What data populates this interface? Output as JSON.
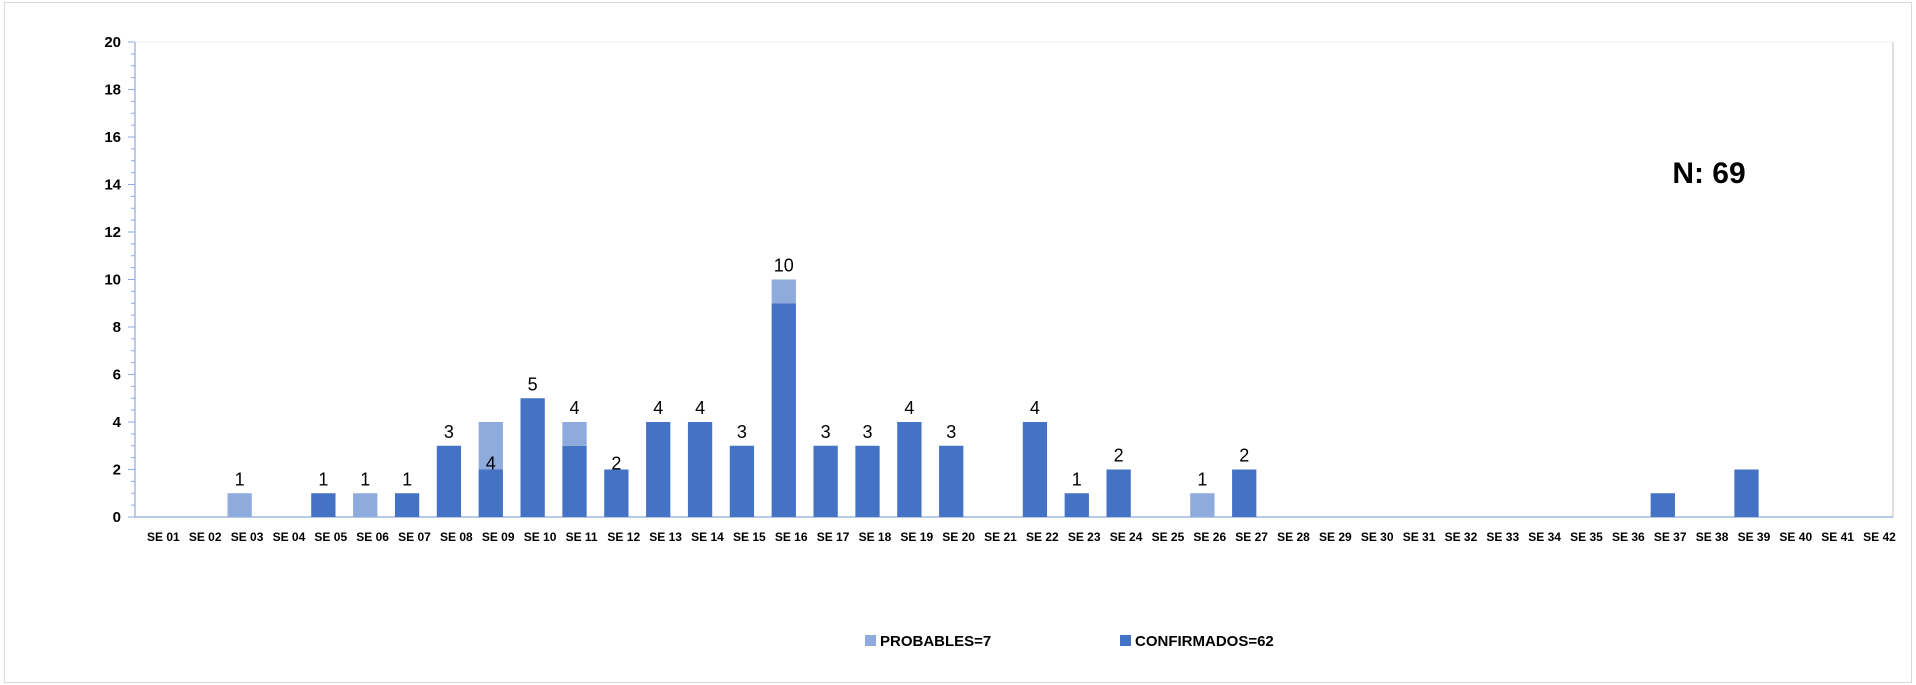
{
  "chart_data": {
    "type": "bar",
    "stacked": true,
    "categories": [
      "SE 01",
      "SE 02",
      "SE 03",
      "SE 04",
      "SE 05",
      "SE 06",
      "SE 07",
      "SE 08",
      "SE 09",
      "SE 10",
      "SE 11",
      "SE 12",
      "SE 13",
      "SE 14",
      "SE 15",
      "SE 16",
      "SE 17",
      "SE 18",
      "SE 19",
      "SE 20",
      "SE 21",
      "SE 22",
      "SE 23",
      "SE 24",
      "SE 25",
      "SE 26",
      "SE 27",
      "SE 28",
      "SE 29",
      "SE 30",
      "SE 31",
      "SE 32",
      "SE 33",
      "SE 34",
      "SE 35",
      "SE 36",
      "SE 37",
      "SE 38",
      "SE 39",
      "SE 40",
      "SE 41",
      "SE 42"
    ],
    "series": [
      {
        "name": "CONFIRMADOS=62",
        "color": "#4472c4",
        "values": [
          0,
          0,
          0,
          0,
          1,
          0,
          1,
          3,
          2,
          5,
          3,
          2,
          4,
          4,
          3,
          9,
          3,
          3,
          4,
          3,
          0,
          4,
          1,
          2,
          0,
          0,
          2,
          0,
          0,
          0,
          0,
          0,
          0,
          0,
          0,
          0,
          1,
          0,
          2,
          0,
          0,
          0
        ]
      },
      {
        "name": "PROBABLES=7",
        "color": "#8faadc",
        "values": [
          0,
          0,
          1,
          0,
          0,
          1,
          0,
          0,
          2,
          0,
          1,
          0,
          0,
          0,
          0,
          1,
          0,
          0,
          0,
          0,
          0,
          0,
          0,
          0,
          0,
          1,
          0,
          0,
          0,
          0,
          0,
          0,
          0,
          0,
          0,
          0,
          0,
          0,
          0,
          0,
          0,
          0
        ]
      }
    ],
    "data_labels": [
      {
        "index": 2,
        "text": "1"
      },
      {
        "index": 4,
        "text": "1"
      },
      {
        "index": 5,
        "text": "1"
      },
      {
        "index": 6,
        "text": "1"
      },
      {
        "index": 7,
        "text": "3"
      },
      {
        "index": 8,
        "text": "4",
        "placement": "inside"
      },
      {
        "index": 9,
        "text": "5"
      },
      {
        "index": 10,
        "text": "4"
      },
      {
        "index": 11,
        "text": "2",
        "placement": "inside"
      },
      {
        "index": 12,
        "text": "4"
      },
      {
        "index": 13,
        "text": "4"
      },
      {
        "index": 14,
        "text": "3"
      },
      {
        "index": 15,
        "text": "10"
      },
      {
        "index": 16,
        "text": "3"
      },
      {
        "index": 17,
        "text": "3"
      },
      {
        "index": 18,
        "text": "4"
      },
      {
        "index": 19,
        "text": "3"
      },
      {
        "index": 21,
        "text": "4"
      },
      {
        "index": 22,
        "text": "1"
      },
      {
        "index": 23,
        "text": "2"
      },
      {
        "index": 25,
        "text": "1"
      },
      {
        "index": 26,
        "text": "2"
      }
    ],
    "yticks": [
      "0",
      "2",
      "4",
      "6",
      "8",
      "10",
      "12",
      "14",
      "16",
      "18",
      "20"
    ],
    "ylim": [
      0,
      20
    ],
    "annotation": "N: 69",
    "legend": {
      "position": "bottom",
      "order": [
        "PROBABLES=7",
        "CONFIRMADOS=62"
      ]
    },
    "grid": false
  }
}
